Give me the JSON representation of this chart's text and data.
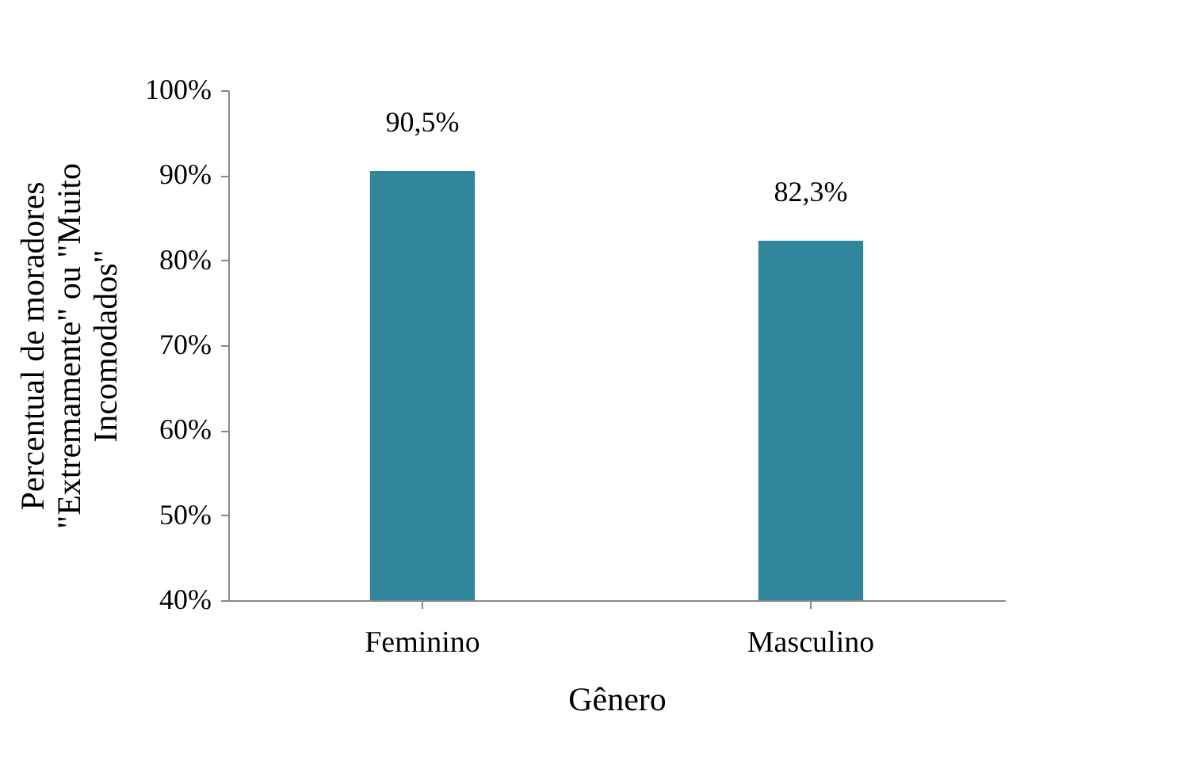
{
  "chart_data": {
    "type": "bar",
    "xlabel": "Gênero",
    "ylabel": "Percentual de moradores\n\"Extremamente\" ou \"Muito\nIncomodados\"",
    "categories": [
      "Feminino",
      "Masculino"
    ],
    "values": [
      90.5,
      82.3
    ],
    "color": "#31869b",
    "value_labels": [
      "90,5%",
      "82,3%"
    ],
    "ylim": [
      40,
      100
    ],
    "yticks": [
      {
        "value": 40,
        "label": "40%"
      },
      {
        "value": 50,
        "label": "50%"
      },
      {
        "value": 60,
        "label": "60%"
      },
      {
        "value": 70,
        "label": "70%"
      },
      {
        "value": 80,
        "label": "80%"
      },
      {
        "value": 90,
        "label": "90%"
      },
      {
        "value": 100,
        "label": "100%"
      }
    ]
  }
}
